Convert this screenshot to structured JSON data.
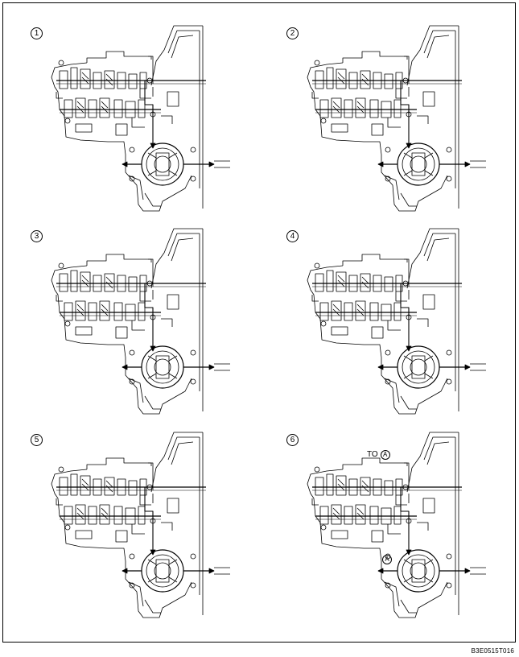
{
  "panels": [
    {
      "step": "1"
    },
    {
      "step": "2"
    },
    {
      "step": "3"
    },
    {
      "step": "4"
    },
    {
      "step": "5"
    },
    {
      "step": "6",
      "callouts": {
        "to_label": "TO",
        "ref_a": "A",
        "ref_a_low": "A"
      }
    }
  ],
  "figure_code": "B3E0515T016",
  "colors": {
    "line": "#000000",
    "background": "#ffffff"
  }
}
